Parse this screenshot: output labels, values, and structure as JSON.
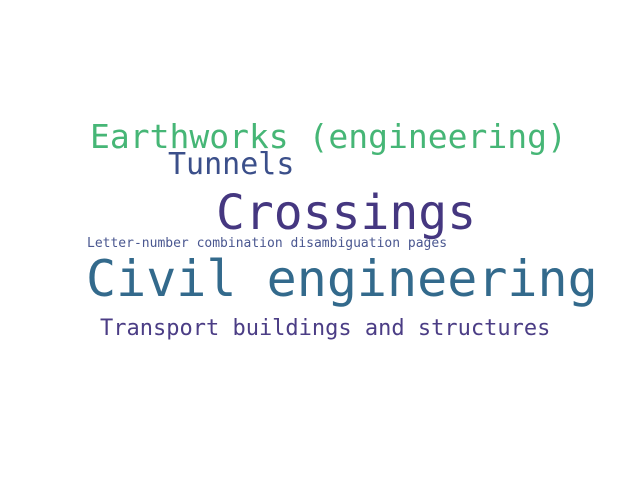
{
  "words": [
    {
      "text": "Earthworks (engineering)",
      "color": "#46b676"
    },
    {
      "text": "Tunnels",
      "color": "#3b4f8a"
    },
    {
      "text": "Crossings",
      "color": "#453780"
    },
    {
      "text": "Letter-number combination disambiguation pages",
      "color": "#4a5790"
    },
    {
      "text": "Civil engineering",
      "color": "#336a8c"
    },
    {
      "text": "Transport buildings and structures",
      "color": "#4b3d85"
    }
  ]
}
